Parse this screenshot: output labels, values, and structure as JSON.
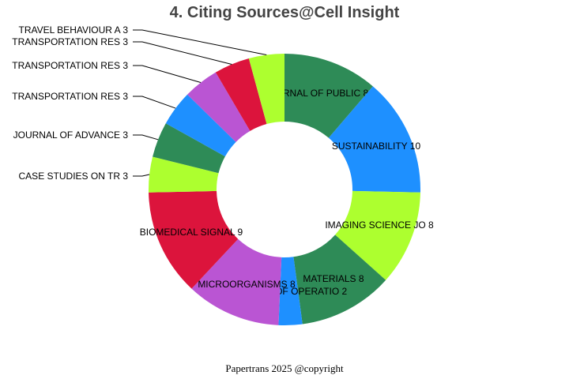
{
  "chart_data": {
    "type": "pie",
    "variant": "donut",
    "title": "4. Citing Sources@Cell Insight",
    "categories": [
      "JOURNAL OF PUBLIC ",
      "SUSTAINABILITY",
      "IMAGING SCIENCE JO",
      "MATERIALS",
      "ANNALS OF OPERATIO",
      "MICROORGANISMS",
      "BIOMEDICAL SIGNAL ",
      "CASE STUDIES ON TR",
      "JOURNAL OF ADVANCE",
      "TRANSPORTATION RES",
      "TRANSPORTATION RES",
      "TRANSPORTATION RES",
      "TRAVEL BEHAVIOUR A"
    ],
    "values": [
      8,
      10,
      8,
      8,
      2,
      8,
      9,
      3,
      3,
      3,
      3,
      3,
      3
    ],
    "labels": [
      "JOURNAL OF PUBLIC  8",
      "SUSTAINABILITY 10",
      "IMAGING SCIENCE JO 8",
      "MATERIALS 8",
      "ANNALS OF OPERATIO 2",
      "MICROORGANISMS 8",
      "BIOMEDICAL SIGNAL  9",
      "CASE STUDIES ON TR 3",
      "JOURNAL OF ADVANCE 3",
      "TRANSPORTATION RES 3",
      "TRANSPORTATION RES 3",
      "TRANSPORTATION RES 3",
      "TRAVEL BEHAVIOUR A 3"
    ],
    "colors": [
      "#2e8b57",
      "#1e90ff",
      "#adff2f",
      "#2e8b57",
      "#1e90ff",
      "#ba55d3",
      "#dc143c",
      "#adff2f",
      "#2e8b57",
      "#1e90ff",
      "#ba55d3",
      "#dc143c",
      "#adff2f"
    ],
    "direction": "clockwise from top"
  },
  "footer": "Papertrans 2025 @copyright"
}
